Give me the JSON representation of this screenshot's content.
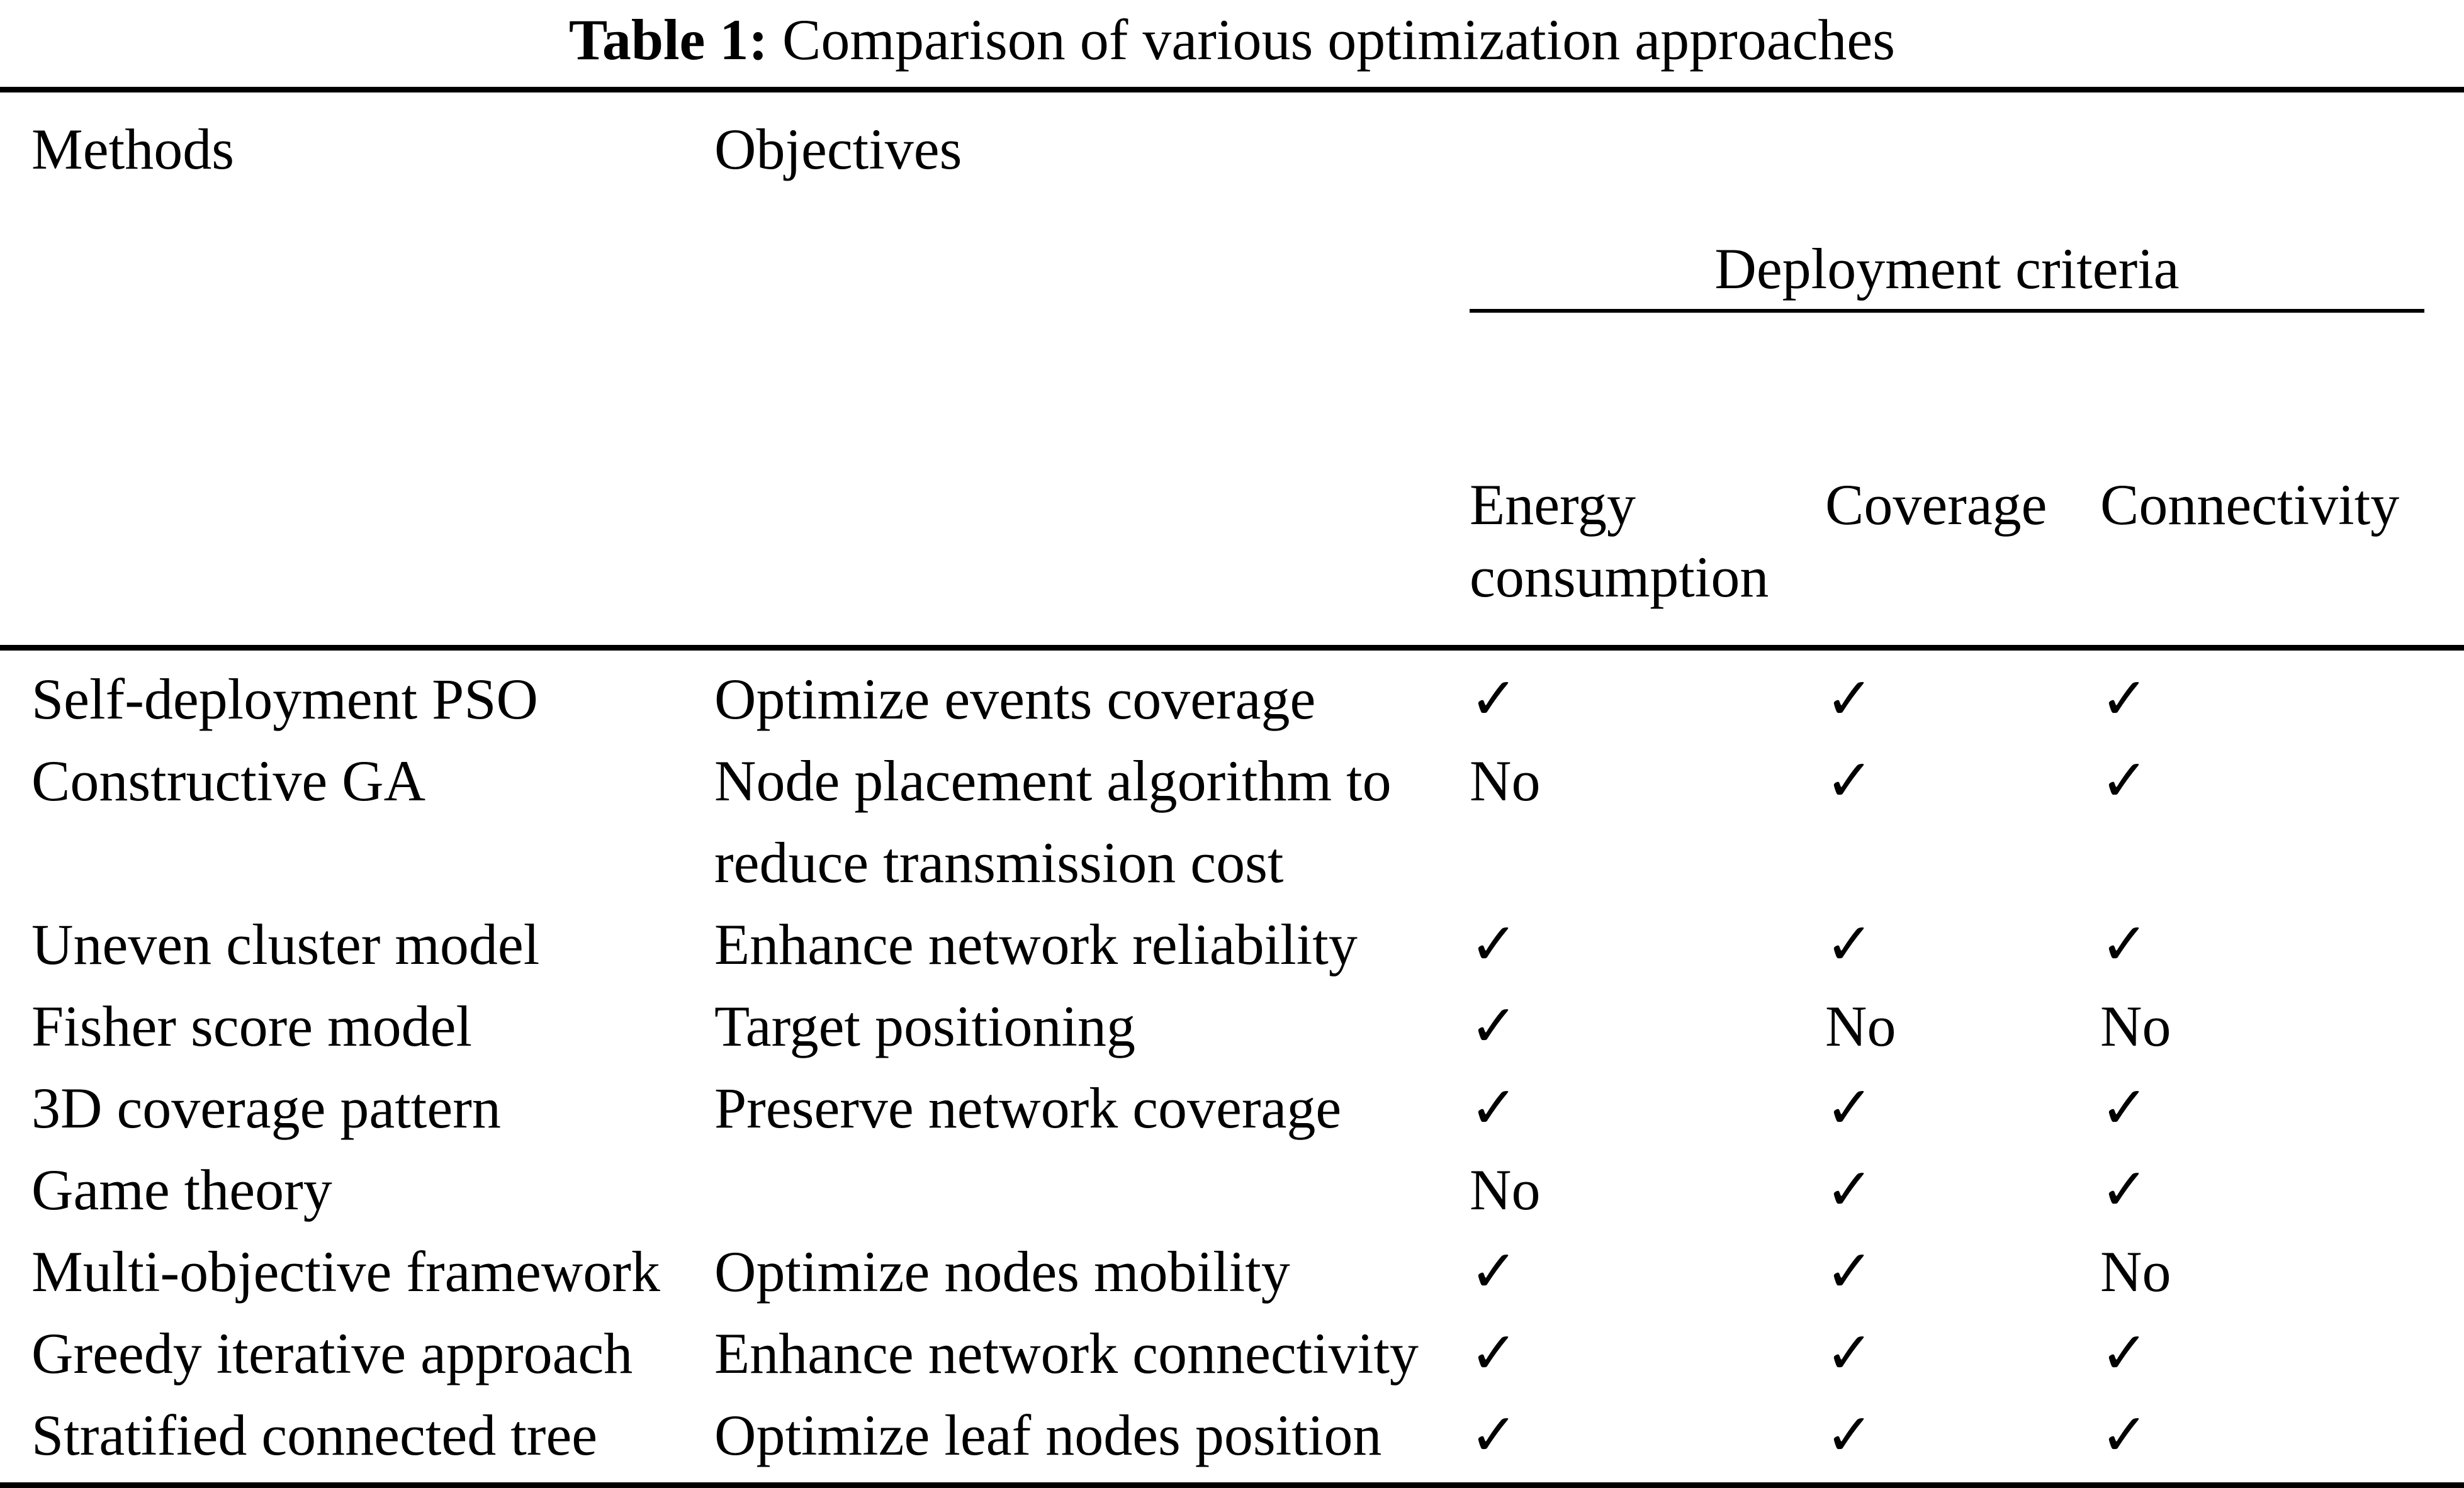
{
  "title": {
    "label": "Table 1:",
    "text": " Comparison of various optimization approaches"
  },
  "table": {
    "columns": {
      "methods": "Methods",
      "objectives": "Objectives",
      "group": "Deployment criteria"
    },
    "criteria": [
      "Energy\nconsumption",
      "Coverage",
      "Connectivity"
    ],
    "rows": [
      {
        "method": "Self-deployment PSO",
        "objective": "Optimize events coverage",
        "energy": "✓",
        "coverage": "✓",
        "connectivity": "✓"
      },
      {
        "method": "Constructive GA",
        "objective": "Node placement algorithm to\nreduce transmission cost",
        "energy": "No",
        "coverage": "✓",
        "connectivity": "✓"
      },
      {
        "method": "Uneven cluster model",
        "objective": "Enhance network reliability",
        "energy": "✓",
        "coverage": "✓",
        "connectivity": "✓"
      },
      {
        "method": "Fisher score model",
        "objective": "Target positioning",
        "energy": "✓",
        "coverage": "No",
        "connectivity": "No"
      },
      {
        "method": "3D coverage pattern",
        "objective": "Preserve network coverage",
        "energy": "✓",
        "coverage": "✓",
        "connectivity": "✓"
      },
      {
        "method": "Game theory",
        "objective": "",
        "energy": "No",
        "coverage": "✓",
        "connectivity": "✓"
      },
      {
        "method": "Multi-objective framework",
        "objective": "Optimize nodes mobility",
        "energy": "✓",
        "coverage": "✓",
        "connectivity": "No"
      },
      {
        "method": "Greedy iterative approach",
        "objective": "Enhance network connectivity",
        "energy": "✓",
        "coverage": "✓",
        "connectivity": "✓"
      },
      {
        "method": "Stratified connected tree",
        "objective": "Optimize leaf nodes position",
        "energy": "✓",
        "coverage": "✓",
        "connectivity": "✓"
      }
    ]
  }
}
